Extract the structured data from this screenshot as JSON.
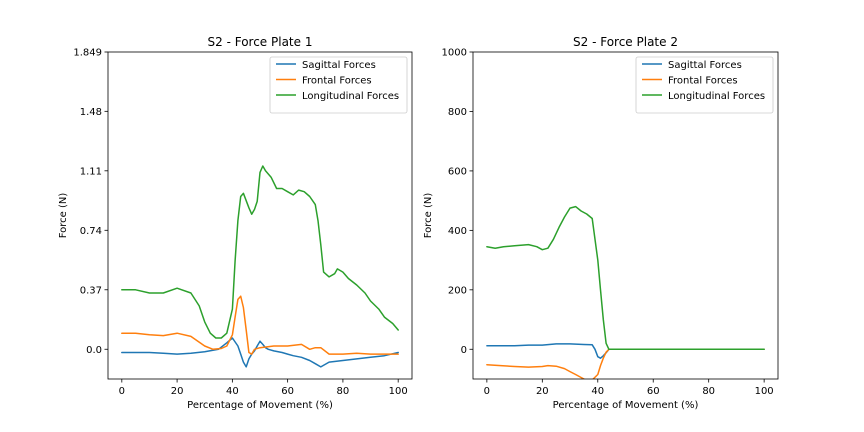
{
  "chart_data": [
    {
      "type": "line",
      "title": "S2 - Force Plate 1",
      "xlabel": "Percentage of Movement (%)",
      "ylabel": "Force (N)",
      "xlim": [
        -5,
        105
      ],
      "ylim": [
        -0.185,
        1.849
      ],
      "xticks": [
        0,
        20,
        40,
        60,
        80,
        100
      ],
      "xticklabels": [
        "0",
        "20",
        "40",
        "60",
        "80",
        "100"
      ],
      "yticks": [
        0.0,
        0.37,
        0.74,
        1.11,
        1.48,
        1.849
      ],
      "yticklabels": [
        "0.0",
        "0.37",
        "0.74",
        "1.11",
        "1.48",
        "1.849"
      ],
      "legend": "top-right",
      "series": [
        {
          "name": "Sagittal Forces",
          "color": "#1f77b4",
          "x": [
            0,
            5,
            10,
            15,
            20,
            25,
            30,
            35,
            38,
            40,
            42,
            43,
            44,
            45,
            46,
            47,
            48,
            49,
            50,
            51,
            52,
            53,
            55,
            58,
            60,
            62,
            65,
            68,
            70,
            72,
            75,
            80,
            85,
            90,
            95,
            100
          ],
          "y": [
            -0.02,
            -0.02,
            -0.02,
            -0.025,
            -0.03,
            -0.025,
            -0.015,
            0.0,
            0.04,
            0.07,
            0.02,
            -0.03,
            -0.08,
            -0.11,
            -0.06,
            -0.03,
            -0.01,
            0.02,
            0.05,
            0.03,
            0.01,
            0.0,
            -0.01,
            -0.02,
            -0.03,
            -0.04,
            -0.05,
            -0.07,
            -0.09,
            -0.11,
            -0.08,
            -0.07,
            -0.06,
            -0.05,
            -0.04,
            -0.02
          ]
        },
        {
          "name": "Frontal Forces",
          "color": "#ff7f0e",
          "x": [
            0,
            5,
            10,
            15,
            20,
            25,
            30,
            33,
            36,
            38,
            40,
            41,
            42,
            43,
            44,
            45,
            46,
            47,
            48,
            50,
            55,
            60,
            65,
            68,
            70,
            72,
            75,
            80,
            85,
            90,
            95,
            100
          ],
          "y": [
            0.1,
            0.1,
            0.09,
            0.085,
            0.1,
            0.08,
            0.02,
            0.0,
            0.005,
            0.02,
            0.09,
            0.2,
            0.31,
            0.33,
            0.26,
            0.12,
            -0.02,
            -0.03,
            0.0,
            0.01,
            0.02,
            0.02,
            0.03,
            0.0,
            0.01,
            0.01,
            -0.03,
            -0.03,
            -0.025,
            -0.03,
            -0.03,
            -0.03
          ]
        },
        {
          "name": "Longitudinal Forces",
          "color": "#2ca02c",
          "x": [
            0,
            5,
            10,
            15,
            20,
            25,
            28,
            30,
            32,
            34,
            36,
            38,
            40,
            41,
            42,
            43,
            44,
            46,
            47,
            48,
            49,
            50,
            51,
            52,
            54,
            56,
            58,
            60,
            62,
            64,
            66,
            68,
            70,
            71,
            72,
            73,
            75,
            77,
            78,
            80,
            82,
            85,
            88,
            90,
            93,
            95,
            98,
            100
          ],
          "y": [
            0.37,
            0.37,
            0.35,
            0.35,
            0.38,
            0.35,
            0.27,
            0.17,
            0.1,
            0.07,
            0.07,
            0.1,
            0.25,
            0.55,
            0.8,
            0.95,
            0.97,
            0.88,
            0.84,
            0.87,
            0.92,
            1.1,
            1.14,
            1.11,
            1.07,
            1.0,
            1.0,
            0.98,
            0.96,
            0.99,
            0.98,
            0.95,
            0.9,
            0.8,
            0.65,
            0.48,
            0.45,
            0.47,
            0.5,
            0.48,
            0.44,
            0.4,
            0.35,
            0.3,
            0.25,
            0.2,
            0.16,
            0.12
          ]
        }
      ]
    },
    {
      "type": "line",
      "title": "S2 - Force Plate 2",
      "xlabel": "Percentage of Movement (%)",
      "ylabel": "Force (N)",
      "xlim": [
        -5,
        105
      ],
      "ylim": [
        -100,
        1000
      ],
      "xticks": [
        0,
        20,
        40,
        60,
        80,
        100
      ],
      "xticklabels": [
        "0",
        "20",
        "40",
        "60",
        "80",
        "100"
      ],
      "yticks": [
        0,
        200,
        400,
        600,
        800,
        1000
      ],
      "yticklabels": [
        "0",
        "200",
        "400",
        "600",
        "800",
        "1000"
      ],
      "legend": "top-right",
      "series": [
        {
          "name": "Sagittal Forces",
          "color": "#1f77b4",
          "x": [
            0,
            5,
            10,
            15,
            20,
            25,
            30,
            35,
            38,
            39,
            40,
            41,
            42,
            43,
            44,
            50,
            60,
            70,
            80,
            90,
            100
          ],
          "y": [
            12,
            12,
            12,
            14,
            14,
            18,
            18,
            16,
            15,
            0,
            -25,
            -30,
            -22,
            -12,
            0,
            0,
            0,
            0,
            0,
            0,
            0
          ]
        },
        {
          "name": "Frontal Forces",
          "color": "#ff7f0e",
          "x": [
            0,
            5,
            10,
            15,
            20,
            22,
            25,
            28,
            30,
            32,
            35,
            37,
            40,
            41,
            42,
            43,
            44,
            50,
            60,
            70,
            80,
            90,
            100
          ],
          "y": [
            -52,
            -55,
            -58,
            -60,
            -58,
            -55,
            -57,
            -65,
            -75,
            -85,
            -100,
            -112,
            -85,
            -55,
            -30,
            -10,
            0,
            0,
            0,
            0,
            0,
            0,
            0
          ]
        },
        {
          "name": "Longitudinal Forces",
          "color": "#2ca02c",
          "x": [
            0,
            3,
            6,
            10,
            15,
            18,
            20,
            22,
            24,
            26,
            28,
            30,
            32,
            34,
            36,
            38,
            40,
            41,
            42,
            43,
            44,
            50,
            60,
            70,
            80,
            90,
            100
          ],
          "y": [
            345,
            340,
            345,
            348,
            352,
            345,
            335,
            340,
            370,
            410,
            445,
            475,
            480,
            465,
            455,
            440,
            300,
            200,
            100,
            20,
            0,
            0,
            0,
            0,
            0,
            0,
            0
          ]
        }
      ]
    }
  ]
}
